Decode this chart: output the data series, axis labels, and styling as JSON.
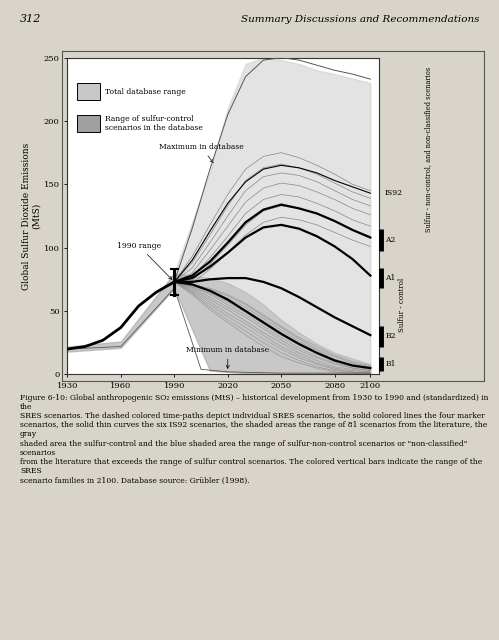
{
  "page_num": "312",
  "page_title": "Summary Discussions and Recommendations",
  "ylabel": "Global Sulfur Dioxide Emissions\n(MtS)",
  "ylim": [
    0,
    250
  ],
  "xlim": [
    1930,
    2105
  ],
  "xtick_vals": [
    1930,
    1960,
    1990,
    2020,
    2050,
    2080,
    2100
  ],
  "xtick_labels": [
    "1930",
    "1960",
    "1990",
    "2020",
    "2050",
    "2080",
    "2100"
  ],
  "ytick_vals": [
    0,
    50,
    100,
    150,
    200,
    250
  ],
  "ytick_labels": [
    "0",
    "50",
    "100",
    "150",
    "200",
    "250"
  ],
  "legend1": "Total database range",
  "legend2": "Range of sulfur-control\nscenarios in the database",
  "label_max_db": "Maximum in database",
  "label_min_db": "Minimum in database",
  "label_1990": "1990 range",
  "label_is92": "IS92",
  "label_sulfur_ctrl": "Sulfur - control",
  "label_sulfur_non": "Sulfur - non-control, and non-classified scenarios",
  "sres_families": [
    "A2",
    "A1",
    "B2",
    "B1"
  ],
  "bg_color": "#d8d4ca",
  "plot_bg": "#ffffff",
  "fig_caption": "Figure 6-10: Global anthropogenic SO₂ emissions (MtS) – historical development from 1930 to 1990 and (standardized) in the\nSRES scenarios. The dashed colored time-paths depict individual SRES scenarios, the solid colored lines the four marker\nscenarios, the solid thin curves the six IS92 scenarios, the shaded areas the range of 81 scenarios from the literature, the gray\nshaded area the sulfur-control and the blue shaded area the range of sulfur-non-control scenarios or \"non-classified\" scenarios\nfrom the literature that exceeds the range of sulfur control scenarios. The colored vertical bars indicate the range of the SRES\nscenario families in 2100. Database source: Grübler (1998)."
}
